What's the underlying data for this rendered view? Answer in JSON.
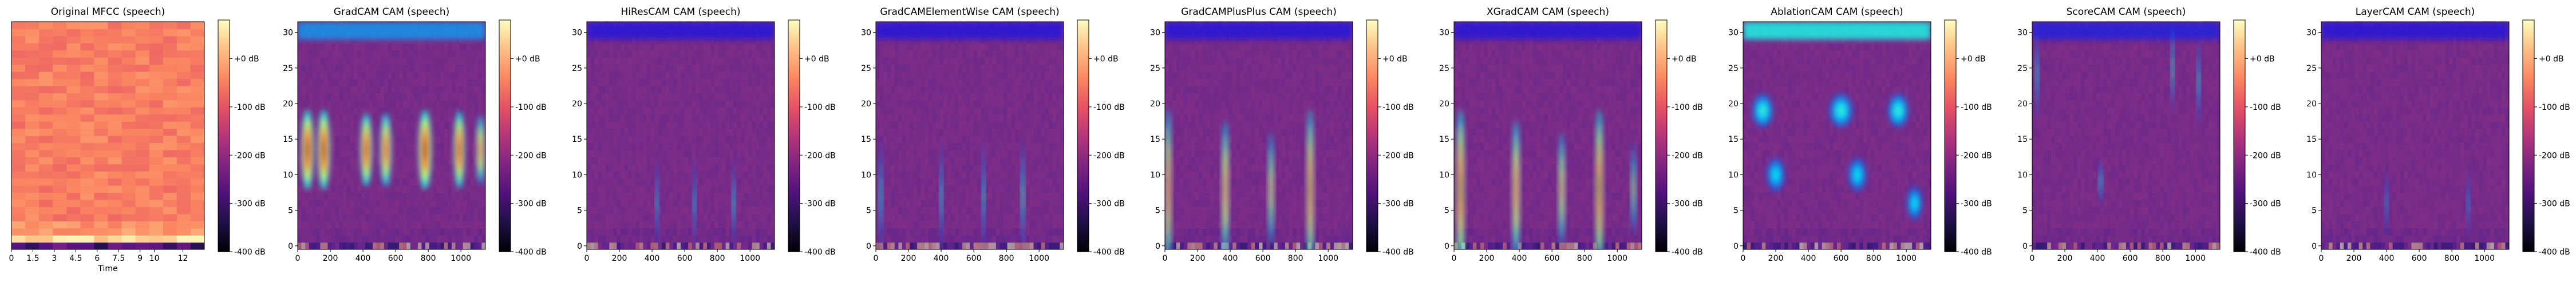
{
  "chart_data": {
    "type": "heatmap",
    "colormap": "magma",
    "colorbar_ticks": [
      "+0 dB",
      "-100 dB",
      "-200 dB",
      "-300 dB",
      "-400 dB"
    ],
    "colorbar_range": [
      -400,
      80
    ],
    "panels": [
      {
        "title": "Original MFCC (speech)",
        "kind": "mfcc",
        "xlabel": "Time",
        "xlim": [
          0,
          13.5
        ],
        "xticks": [
          0,
          1.5,
          3,
          4.5,
          6,
          7.5,
          9,
          10,
          12
        ],
        "xtick_labels": [
          "0",
          "1.5",
          "3",
          "4.5",
          "6",
          "7.5",
          "9",
          "10",
          "12"
        ],
        "ylim": [
          -0.5,
          31.5
        ],
        "yticks": [],
        "hotspots": []
      },
      {
        "title": "GradCAM CAM (speech)",
        "kind": "overlay",
        "xlabel": "",
        "xlim": [
          0,
          1150
        ],
        "xticks": [
          0,
          200,
          400,
          600,
          800,
          1000
        ],
        "xtick_labels": [
          "0",
          "200",
          "400",
          "600",
          "800",
          "1000"
        ],
        "ylim": [
          -0.5,
          31.5
        ],
        "yticks": [
          0,
          5,
          10,
          15,
          20,
          25,
          30
        ],
        "top_band": 0.55,
        "hotspots": [
          {
            "x": 60,
            "y": 13.5,
            "w": 45,
            "h": 3.5,
            "v": 1.0
          },
          {
            "x": 160,
            "y": 13.5,
            "w": 45,
            "h": 3.5,
            "v": 1.0
          },
          {
            "x": 420,
            "y": 13.5,
            "w": 42,
            "h": 3.2,
            "v": 0.95
          },
          {
            "x": 540,
            "y": 13.5,
            "w": 40,
            "h": 3.2,
            "v": 0.9
          },
          {
            "x": 780,
            "y": 13.5,
            "w": 48,
            "h": 3.5,
            "v": 1.0
          },
          {
            "x": 990,
            "y": 13.5,
            "w": 40,
            "h": 3.4,
            "v": 0.95
          },
          {
            "x": 1120,
            "y": 13.5,
            "w": 30,
            "h": 3.0,
            "v": 0.8
          }
        ]
      },
      {
        "title": "HiResCAM CAM (speech)",
        "kind": "overlay",
        "xlabel": "",
        "xlim": [
          0,
          1150
        ],
        "xticks": [
          0,
          200,
          400,
          600,
          800,
          1000
        ],
        "xtick_labels": [
          "0",
          "200",
          "400",
          "600",
          "800",
          "1000"
        ],
        "ylim": [
          -0.5,
          31.5
        ],
        "yticks": [
          0,
          5,
          10,
          15,
          20,
          25,
          30
        ],
        "top_band": 0.1,
        "hotspots": [
          {
            "x": 430,
            "y": 6,
            "w": 10,
            "h": 4,
            "v": 0.25
          },
          {
            "x": 660,
            "y": 6,
            "w": 10,
            "h": 4,
            "v": 0.25
          },
          {
            "x": 900,
            "y": 6,
            "w": 10,
            "h": 4,
            "v": 0.3
          }
        ]
      },
      {
        "title": "GradCAMElementWise CAM (speech)",
        "kind": "overlay",
        "xlabel": "",
        "xlim": [
          0,
          1150
        ],
        "xticks": [
          0,
          200,
          400,
          600,
          800,
          1000
        ],
        "xtick_labels": [
          "0",
          "200",
          "400",
          "600",
          "800",
          "1000"
        ],
        "ylim": [
          -0.5,
          31.5
        ],
        "yticks": [
          0,
          5,
          10,
          15,
          20,
          25,
          30
        ],
        "top_band": 0.1,
        "hotspots": [
          {
            "x": 30,
            "y": 7,
            "w": 12,
            "h": 5,
            "v": 0.3
          },
          {
            "x": 400,
            "y": 7,
            "w": 10,
            "h": 5,
            "v": 0.3
          },
          {
            "x": 660,
            "y": 7,
            "w": 10,
            "h": 5,
            "v": 0.3
          },
          {
            "x": 900,
            "y": 7,
            "w": 12,
            "h": 5,
            "v": 0.35
          }
        ]
      },
      {
        "title": "GradCAMPlusPlus CAM (speech)",
        "kind": "overlay",
        "xlabel": "",
        "xlim": [
          0,
          1150
        ],
        "xticks": [
          0,
          200,
          400,
          600,
          800,
          1000
        ],
        "xtick_labels": [
          "0",
          "200",
          "400",
          "600",
          "800",
          "1000"
        ],
        "ylim": [
          -0.5,
          31.5
        ],
        "yticks": [
          0,
          5,
          10,
          15,
          20,
          25,
          30
        ],
        "top_band": 0.1,
        "hotspots": [
          {
            "x": 20,
            "y": 8,
            "w": 22,
            "h": 7,
            "v": 0.85
          },
          {
            "x": 370,
            "y": 8,
            "w": 24,
            "h": 6,
            "v": 0.8
          },
          {
            "x": 650,
            "y": 8,
            "w": 20,
            "h": 5,
            "v": 0.65
          },
          {
            "x": 890,
            "y": 8,
            "w": 24,
            "h": 7,
            "v": 0.9
          }
        ]
      },
      {
        "title": "XGradCAM CAM (speech)",
        "kind": "overlay",
        "xlabel": "",
        "xlim": [
          0,
          1150
        ],
        "xticks": [
          0,
          200,
          400,
          600,
          800,
          1000
        ],
        "xtick_labels": [
          "0",
          "200",
          "400",
          "600",
          "800",
          "1000"
        ],
        "ylim": [
          -0.5,
          31.5
        ],
        "yticks": [
          0,
          5,
          10,
          15,
          20,
          25,
          30
        ],
        "top_band": 0.1,
        "hotspots": [
          {
            "x": 40,
            "y": 8,
            "w": 28,
            "h": 7,
            "v": 0.95
          },
          {
            "x": 380,
            "y": 8,
            "w": 26,
            "h": 6,
            "v": 0.85
          },
          {
            "x": 660,
            "y": 8,
            "w": 22,
            "h": 5,
            "v": 0.7
          },
          {
            "x": 890,
            "y": 8,
            "w": 26,
            "h": 7,
            "v": 0.95
          },
          {
            "x": 1100,
            "y": 8,
            "w": 16,
            "h": 4,
            "v": 0.5
          }
        ]
      },
      {
        "title": "AblationCAM CAM (speech)",
        "kind": "overlay",
        "xlabel": "",
        "xlim": [
          0,
          1150
        ],
        "xticks": [
          0,
          200,
          400,
          600,
          800,
          1000
        ],
        "xtick_labels": [
          "0",
          "200",
          "400",
          "600",
          "800",
          "1000"
        ],
        "ylim": [
          -0.5,
          31.5
        ],
        "yticks": [
          0,
          5,
          10,
          15,
          20,
          25,
          30
        ],
        "top_band": 0.85,
        "hotspots": [
          {
            "x": 120,
            "y": 19,
            "w": 80,
            "h": 1.5,
            "v": 0.35
          },
          {
            "x": 600,
            "y": 19,
            "w": 90,
            "h": 1.5,
            "v": 0.35
          },
          {
            "x": 950,
            "y": 19,
            "w": 80,
            "h": 1.5,
            "v": 0.35
          },
          {
            "x": 200,
            "y": 10,
            "w": 70,
            "h": 1.5,
            "v": 0.3
          },
          {
            "x": 700,
            "y": 10,
            "w": 70,
            "h": 1.5,
            "v": 0.3
          },
          {
            "x": 1050,
            "y": 6,
            "w": 60,
            "h": 1.5,
            "v": 0.3
          }
        ]
      },
      {
        "title": "ScoreCAM CAM (speech)",
        "kind": "overlay",
        "xlabel": "",
        "xlim": [
          0,
          1150
        ],
        "xticks": [
          0,
          200,
          400,
          600,
          800,
          1000
        ],
        "xtick_labels": [
          "0",
          "200",
          "400",
          "600",
          "800",
          "1000"
        ],
        "ylim": [
          -0.5,
          31.5
        ],
        "yticks": [
          0,
          5,
          10,
          15,
          20,
          25,
          30
        ],
        "top_band": 0.15,
        "hotspots": [
          {
            "x": 30,
            "y": 24,
            "w": 10,
            "h": 4,
            "v": 0.3
          },
          {
            "x": 860,
            "y": 25,
            "w": 10,
            "h": 4,
            "v": 0.35
          },
          {
            "x": 1020,
            "y": 23,
            "w": 10,
            "h": 4,
            "v": 0.3
          },
          {
            "x": 420,
            "y": 9,
            "w": 12,
            "h": 2,
            "v": 0.3
          }
        ]
      },
      {
        "title": "LayerCAM CAM (speech)",
        "kind": "overlay",
        "xlabel": "",
        "xlim": [
          0,
          1150
        ],
        "xticks": [
          0,
          200,
          400,
          600,
          800,
          1000
        ],
        "xtick_labels": [
          "0",
          "200",
          "400",
          "600",
          "800",
          "1000"
        ],
        "ylim": [
          -0.5,
          31.5
        ],
        "yticks": [
          0,
          5,
          10,
          15,
          20,
          25,
          30
        ],
        "top_band": 0.1,
        "hotspots": [
          {
            "x": 400,
            "y": 6,
            "w": 10,
            "h": 3,
            "v": 0.2
          },
          {
            "x": 900,
            "y": 6,
            "w": 10,
            "h": 3,
            "v": 0.2
          }
        ]
      }
    ]
  }
}
